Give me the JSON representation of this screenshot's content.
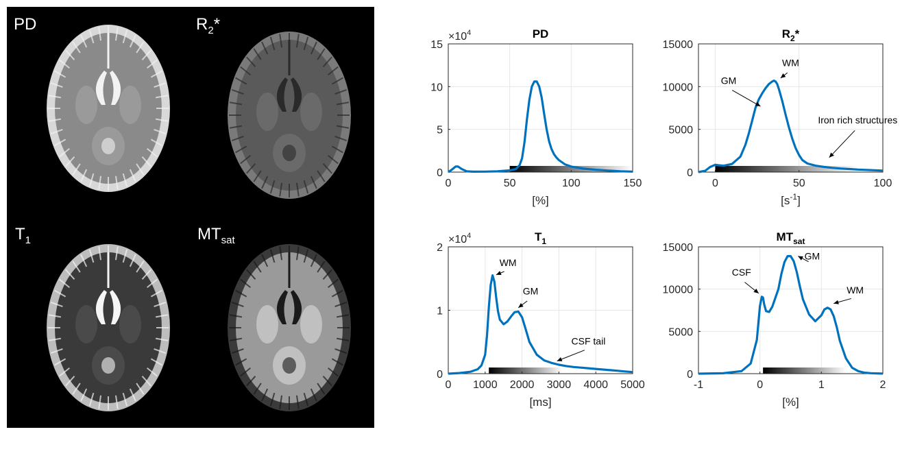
{
  "panel_labels": [
    {
      "main": "PD",
      "sub": "",
      "suffix": ""
    },
    {
      "main": "R",
      "sub": "2",
      "suffix": "*"
    },
    {
      "main": "T",
      "sub": "1",
      "suffix": ""
    },
    {
      "main": "MT",
      "sub": "sat",
      "suffix": ""
    }
  ],
  "colors": {
    "line": "#0072BD",
    "axis": "#262626",
    "grid": "#e6e6e6",
    "panel_bg": "#000000"
  },
  "chart_data": [
    {
      "type": "line",
      "title": "PD",
      "title_sub": "",
      "title_suffix": "",
      "xlabel": "[%]",
      "xlim": [
        0,
        150
      ],
      "ylim": [
        0,
        150000
      ],
      "xticks": [
        0,
        50,
        100,
        150
      ],
      "xtick_labels": [
        "0",
        "50",
        "100",
        "150"
      ],
      "yticks": [
        0,
        50000,
        100000,
        150000
      ],
      "ytick_labels": [
        "0",
        "5",
        "10",
        "15"
      ],
      "exponent": "×10",
      "exponent_power": "4",
      "colorbar": [
        50,
        150
      ],
      "grid": true,
      "series": [
        {
          "x": [
            0,
            3,
            6,
            8,
            11,
            15,
            20,
            30,
            40,
            50,
            55,
            58,
            60,
            62,
            64,
            66,
            68,
            70,
            72,
            74,
            76,
            78,
            80,
            82,
            84,
            86,
            88,
            90,
            95,
            100,
            110,
            120,
            130,
            140,
            150
          ],
          "y": [
            0,
            3000,
            6500,
            6500,
            3500,
            1000,
            500,
            600,
            900,
            2000,
            3500,
            8000,
            16000,
            35000,
            62000,
            85000,
            100000,
            106000,
            106000,
            100000,
            87000,
            68000,
            50000,
            36000,
            27000,
            21000,
            17000,
            14000,
            9000,
            6500,
            4000,
            2700,
            1800,
            1000,
            600
          ]
        }
      ],
      "annotations": []
    },
    {
      "type": "line",
      "title": "R",
      "title_sub": "2",
      "title_suffix": "*",
      "xlabel": "[s",
      "xlabel_sup": "-1",
      "xlabel_end": "]",
      "xlim": [
        -10,
        100
      ],
      "ylim": [
        0,
        15000
      ],
      "xticks": [
        0,
        50,
        100
      ],
      "xtick_labels": [
        "0",
        "50",
        "100"
      ],
      "yticks": [
        0,
        5000,
        10000,
        15000
      ],
      "ytick_labels": [
        "0",
        "5000",
        "10000",
        "15000"
      ],
      "exponent": "",
      "exponent_power": "",
      "colorbar": [
        0,
        85
      ],
      "grid": true,
      "series": [
        {
          "x": [
            -10,
            -6,
            -3,
            0,
            2,
            5,
            10,
            15,
            18,
            20,
            22,
            24,
            26,
            28,
            30,
            32,
            34,
            35,
            36,
            37,
            38,
            40,
            42,
            44,
            46,
            48,
            50,
            52,
            55,
            60,
            65,
            70,
            75,
            80,
            85,
            90,
            95,
            100
          ],
          "y": [
            0,
            150,
            600,
            850,
            800,
            750,
            950,
            1800,
            3200,
            4500,
            6000,
            7500,
            8500,
            9200,
            9800,
            10300,
            10600,
            10700,
            10600,
            10300,
            9700,
            8300,
            6700,
            5200,
            3900,
            2800,
            2000,
            1400,
            1000,
            750,
            600,
            500,
            420,
            360,
            300,
            260,
            220,
            180
          ]
        }
      ],
      "annotations": [
        {
          "text": "GM",
          "tx": 8,
          "ty": 10300,
          "ax": 27,
          "ay": 7700
        },
        {
          "text": "WM",
          "tx": 45,
          "ty": 12400,
          "ax": 39,
          "ay": 11000
        },
        {
          "text": "Iron rich structures",
          "tx": 85,
          "ty": 5700,
          "ax": 68,
          "ay": 1700
        }
      ]
    },
    {
      "type": "line",
      "title": "T",
      "title_sub": "1",
      "title_suffix": "",
      "xlabel": "[ms]",
      "xlim": [
        0,
        5000
      ],
      "ylim": [
        0,
        20000
      ],
      "xticks": [
        0,
        1000,
        2000,
        3000,
        4000,
        5000
      ],
      "xtick_labels": [
        "0",
        "1000",
        "2000",
        "3000",
        "4000",
        "5000"
      ],
      "yticks": [
        0,
        10000,
        20000
      ],
      "ytick_labels": [
        "0",
        "1",
        "2"
      ],
      "exponent": "×10",
      "exponent_power": "4",
      "colorbar": [
        1100,
        3100
      ],
      "grid": true,
      "series": [
        {
          "x": [
            0,
            300,
            600,
            800,
            900,
            1000,
            1050,
            1100,
            1150,
            1200,
            1250,
            1300,
            1350,
            1400,
            1500,
            1600,
            1700,
            1800,
            1900,
            2000,
            2100,
            2200,
            2400,
            2600,
            2800,
            3000,
            3200,
            3400,
            3600,
            3800,
            4000,
            4200,
            4400,
            4600,
            4800,
            5000
          ],
          "y": [
            0,
            100,
            300,
            700,
            1300,
            3000,
            6000,
            10500,
            14000,
            15500,
            14500,
            12000,
            9800,
            8500,
            7800,
            8200,
            9000,
            9700,
            9800,
            8900,
            7000,
            5000,
            3000,
            2100,
            1700,
            1400,
            1200,
            1050,
            950,
            850,
            750,
            650,
            550,
            450,
            350,
            250
          ]
        }
      ],
      "annotations": [
        {
          "text": "WM",
          "tx": 1620,
          "ty": 17000,
          "ax": 1300,
          "ay": 15600
        },
        {
          "text": "GM",
          "tx": 2230,
          "ty": 12500,
          "ax": 1900,
          "ay": 10400
        },
        {
          "text": "CSF tail",
          "tx": 3800,
          "ty": 4600,
          "ax": 2950,
          "ay": 2000
        }
      ]
    },
    {
      "type": "line",
      "title": "MT",
      "title_sub": "sat",
      "title_suffix": "",
      "xlabel": "[%]",
      "xlim": [
        -1,
        2
      ],
      "ylim": [
        0,
        15000
      ],
      "xticks": [
        -1,
        0,
        1,
        2
      ],
      "xtick_labels": [
        "-1",
        "0",
        "1",
        "2"
      ],
      "yticks": [
        0,
        5000,
        10000,
        15000
      ],
      "ytick_labels": [
        "0",
        "5000",
        "10000",
        "15000"
      ],
      "exponent": "",
      "exponent_power": "",
      "colorbar": [
        0.05,
        1.4
      ],
      "grid": true,
      "series": [
        {
          "x": [
            -1,
            -0.6,
            -0.3,
            -0.15,
            -0.05,
            0,
            0.03,
            0.05,
            0.07,
            0.1,
            0.15,
            0.2,
            0.3,
            0.35,
            0.4,
            0.45,
            0.5,
            0.55,
            0.6,
            0.65,
            0.7,
            0.8,
            0.9,
            1.0,
            1.05,
            1.1,
            1.15,
            1.2,
            1.25,
            1.3,
            1.4,
            1.5,
            1.6,
            1.7,
            1.8,
            1.9,
            2.0
          ],
          "y": [
            0,
            50,
            300,
            1200,
            4000,
            8000,
            9100,
            9000,
            8200,
            7400,
            7300,
            7900,
            10000,
            11800,
            13200,
            13900,
            13900,
            13300,
            12000,
            10300,
            8800,
            7000,
            6200,
            6900,
            7600,
            7800,
            7600,
            6800,
            5500,
            3900,
            1800,
            700,
            300,
            120,
            60,
            30,
            10
          ]
        }
      ],
      "annotations": [
        {
          "text": "CSF",
          "tx": -0.3,
          "ty": 11600,
          "ax": -0.02,
          "ay": 9500
        },
        {
          "text": "GM",
          "tx": 0.85,
          "ty": 13500,
          "ax": 0.62,
          "ay": 13900
        },
        {
          "text": "WM",
          "tx": 1.55,
          "ty": 9500,
          "ax": 1.2,
          "ay": 8300
        }
      ]
    }
  ]
}
